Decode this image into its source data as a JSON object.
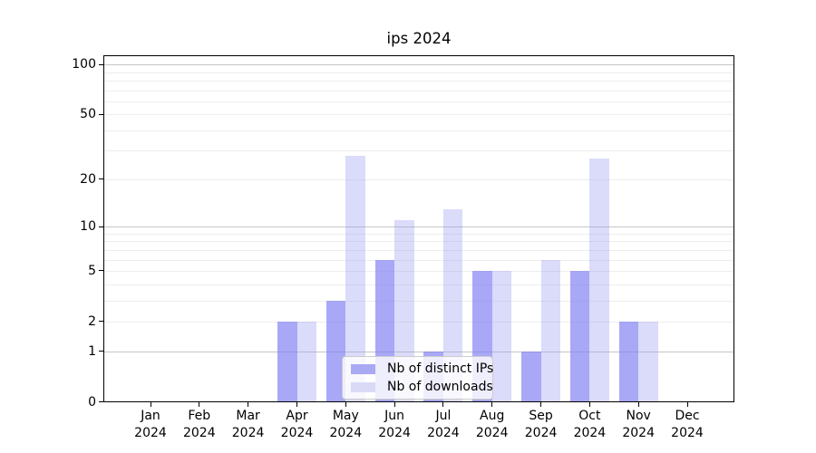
{
  "chart_data": {
    "type": "bar",
    "title": "ips 2024",
    "categories": [
      "Jan 2024",
      "Feb 2024",
      "Mar 2024",
      "Apr 2024",
      "May 2024",
      "Jun 2024",
      "Jul 2024",
      "Aug 2024",
      "Sep 2024",
      "Oct 2024",
      "Nov 2024",
      "Dec 2024"
    ],
    "x_tick_month_labels": [
      "Jan",
      "Feb",
      "Mar",
      "Apr",
      "May",
      "Jun",
      "Jul",
      "Aug",
      "Sep",
      "Oct",
      "Nov",
      "Dec"
    ],
    "x_tick_year_label": "2024",
    "series": [
      {
        "name": "Nb of distinct IPs",
        "values": [
          0,
          0,
          0,
          2,
          3,
          6,
          1,
          5,
          1,
          5,
          2,
          0
        ]
      },
      {
        "name": "Nb of downloads",
        "values": [
          0,
          0,
          0,
          2,
          28,
          11,
          13,
          5,
          6,
          27,
          2,
          0
        ]
      }
    ],
    "yscale": "symlog-log1p",
    "ylim": [
      0,
      114
    ],
    "y_tick_labels": [
      "100",
      "50",
      "20",
      "10",
      "5",
      "2",
      "1",
      "0"
    ],
    "y_tick_values": [
      100,
      50,
      20,
      10,
      5,
      2,
      1,
      0
    ],
    "y_major_grid_values": [
      1,
      10,
      100
    ],
    "y_minor_grid_values": [
      2,
      3,
      4,
      5,
      6,
      7,
      8,
      9,
      20,
      30,
      40,
      50,
      60,
      70,
      80,
      90
    ],
    "grid": true,
    "legend_position": "lower center"
  },
  "legend": {
    "items": [
      {
        "label": "Nb of distinct IPs",
        "swatch_color": "#a9a9f4"
      },
      {
        "label": "Nb of downloads",
        "swatch_color": "#dadaf7"
      }
    ]
  },
  "colors": {
    "bar_distinct_ips": "rgba(131,131,242,0.7)",
    "bar_downloads": "rgba(152,152,241,0.35)",
    "major_grid": "#c6c6c6",
    "minor_grid": "#ededed",
    "spine": "#000000",
    "text": "#000000",
    "legend_border": "#cccccc",
    "legend_bg": "rgba(255,255,255,0.8)"
  }
}
